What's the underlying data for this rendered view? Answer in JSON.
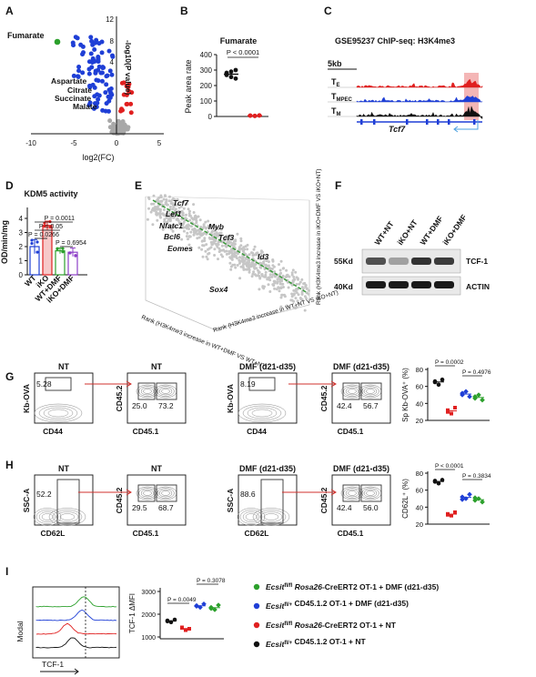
{
  "panels": {
    "A": {
      "letter": "A",
      "ylabel": "-log10(P value)",
      "xlabel": "log2(FC)",
      "highlight_label": "Fumarate",
      "metabolite_labels": [
        "Aspartate",
        "Citrate",
        "Succinate",
        "Malate"
      ],
      "colors": {
        "down": "#1f3fd6",
        "up": "#e02020",
        "ns": "#a8a8a8",
        "fumarate": "#2ca02c"
      },
      "chart_data": {
        "type": "scatter",
        "xlim": [
          -10,
          5
        ],
        "ylim": [
          0,
          12
        ],
        "xticks": [
          "-10",
          "-5",
          "0",
          "5"
        ],
        "yticks": [
          "12",
          "8",
          "4"
        ],
        "highlight": {
          "name": "Fumarate",
          "x": -6.9,
          "y": 8.3
        }
      }
    },
    "B": {
      "letter": "B",
      "title": "Fumarate",
      "ylabel": "Peak area rate",
      "pvalue": "P < 0.0001",
      "chart_data": {
        "type": "scatter",
        "ylim": [
          0,
          400
        ],
        "yticks": [
          "400",
          "300",
          "200",
          "100",
          "0"
        ],
        "groups": [
          {
            "color": "#111111",
            "values": [
              282,
              255,
              300,
              268,
              290,
              245
            ]
          },
          {
            "color": "#e02020",
            "values": [
              6,
              4,
              7,
              5,
              3,
              6
            ]
          }
        ]
      }
    },
    "C": {
      "letter": "C",
      "title": "GSE95237 ChIP-seq:  H3K4me3",
      "scale": "5kb",
      "tracks": [
        {
          "label": "T",
          "sub": "E",
          "color": "#e02020"
        },
        {
          "label": "T",
          "sub": "MPEC",
          "color": "#1f3fd6"
        },
        {
          "label": "T",
          "sub": "M",
          "color": "#111111"
        }
      ],
      "gene": "Tcf7"
    },
    "D": {
      "letter": "D",
      "title": "KDM5 activity",
      "ylabel": "OD/min/mg",
      "pvalues": [
        "P = 0.0011",
        "P = 0.05",
        "P = 0.0266",
        "P = 0.6954"
      ],
      "chart_data": {
        "type": "bar",
        "categories": [
          "WT",
          "iKO",
          "WT+DMF",
          "iKO+DMF"
        ],
        "values": [
          2.0,
          3.5,
          1.7,
          1.6
        ],
        "errors": [
          0.5,
          0.3,
          0.2,
          0.3
        ],
        "colors": [
          "#1f3fd6",
          "#e02020",
          "#2ca02c",
          "#8e3fc8"
        ],
        "ylim": [
          0,
          4
        ],
        "yticks": [
          "4",
          "3",
          "2",
          "1",
          "0"
        ]
      }
    },
    "E": {
      "letter": "E",
      "gene_labels": [
        "Tcf7",
        "Lef1",
        "Nfatc1",
        "Bcl6",
        "Eomes",
        "Myb",
        "Tcf3",
        "Id3",
        "Sox4"
      ],
      "axis_x": "Rank (H3K4me3 increase in WT+DMF VS WT+NT)",
      "axis_y": "Rank (H3K4me3 increase in WT+NT VS iKO+NT)",
      "axis_z": "Rank (H3K4me3 increase in iKO+DMF VS iKO+NT)"
    },
    "F": {
      "letter": "F",
      "lanes": [
        "WT+NT",
        "iKO+NT",
        "WT+DMF",
        "iKO+DMF"
      ],
      "markers": [
        "55Kd",
        "40Kd"
      ],
      "bands": [
        "TCF-1",
        "ACTIN"
      ],
      "tcf1_intensity": [
        0.75,
        0.35,
        0.9,
        0.85
      ]
    },
    "G": {
      "letter": "G",
      "plots": [
        {
          "title": "NT",
          "ylabel": "Kb-OVA",
          "xlabel": "CD44",
          "values": [
            "5.28"
          ]
        },
        {
          "title": "NT",
          "ylabel": "CD45.2",
          "xlabel": "CD45.1",
          "values": [
            "25.0",
            "73.2"
          ]
        },
        {
          "title": "DMF (d21-d35)",
          "ylabel": "Kb-OVA",
          "xlabel": "CD44",
          "values": [
            "8.19"
          ]
        },
        {
          "title": "DMF (d21-d35)",
          "ylabel": "CD45.2",
          "xlabel": "CD45.1",
          "values": [
            "42.4",
            "56.7"
          ]
        }
      ],
      "summary": {
        "ylabel": "Sp Kb-OVA⁺ (%)",
        "pvalues": [
          "P = 0.0002",
          "P = 0.4976"
        ],
        "yticks": [
          "80",
          "60",
          "40",
          "20"
        ],
        "chart_data": {
          "type": "scatter",
          "ylim": [
            20,
            80
          ],
          "groups": [
            {
              "color": "#111111",
              "shape": "circle",
              "values": [
                65,
                62,
                68,
                66
              ]
            },
            {
              "color": "#e02020",
              "shape": "square",
              "values": [
                32,
                28,
                35,
                30
              ]
            },
            {
              "color": "#1f3fd6",
              "shape": "diamond",
              "values": [
                50,
                54,
                48,
                52
              ]
            },
            {
              "color": "#2ca02c",
              "shape": "diamond",
              "values": [
                46,
                50,
                44,
                48
              ]
            }
          ]
        }
      }
    },
    "H": {
      "letter": "H",
      "plots": [
        {
          "title": "NT",
          "ylabel": "SSC-A",
          "xlabel": "CD62L",
          "values": [
            "52.2"
          ]
        },
        {
          "title": "NT",
          "ylabel": "CD45.2",
          "xlabel": "CD45.1",
          "values": [
            "29.5",
            "68.7"
          ]
        },
        {
          "title": "DMF (d21-d35)",
          "ylabel": "SSC-A",
          "xlabel": "CD62L",
          "values": [
            "88.6"
          ]
        },
        {
          "title": "DMF (d21-d35)",
          "ylabel": "CD45.2",
          "xlabel": "CD45.1",
          "values": [
            "42.4",
            "56.0"
          ]
        }
      ],
      "summary": {
        "ylabel": "CD62L⁺ (%)",
        "pvalues": [
          "P < 0.0001",
          "P = 0.3834"
        ],
        "yticks": [
          "80",
          "60",
          "40",
          "20"
        ],
        "chart_data": {
          "type": "scatter",
          "ylim": [
            20,
            80
          ],
          "groups": [
            {
              "color": "#111111",
              "shape": "circle",
              "values": [
                70,
                68,
                72,
                71
              ]
            },
            {
              "color": "#e02020",
              "shape": "square",
              "values": [
                32,
                30,
                34,
                31
              ]
            },
            {
              "color": "#1f3fd6",
              "shape": "diamond",
              "values": [
                52,
                50,
                55,
                49
              ]
            },
            {
              "color": "#2ca02c",
              "shape": "diamond",
              "values": [
                48,
                50,
                46,
                51
              ]
            }
          ]
        }
      }
    },
    "I": {
      "letter": "I",
      "ylabel_hist": "Modal",
      "xlabel_hist": "TCF-1",
      "ylabel_scatter": "TCF-1 ΔMFI",
      "pvalues": [
        "P = 0.0049",
        "P = 0.3078"
      ],
      "yticks": [
        "3000",
        "2000",
        "1000"
      ],
      "chart_data": {
        "type": "scatter",
        "ylim": [
          1000,
          3000
        ],
        "groups": [
          {
            "color": "#111111",
            "shape": "circle",
            "values": [
              1720,
              1650,
              1760,
              1690
            ]
          },
          {
            "color": "#e02020",
            "shape": "square",
            "values": [
              1400,
              1300,
              1360,
              1420
            ]
          },
          {
            "color": "#1f3fd6",
            "shape": "diamond",
            "values": [
              2380,
              2300,
              2450,
              2350
            ]
          },
          {
            "color": "#2ca02c",
            "shape": "diamond",
            "values": [
              2300,
              2200,
              2400,
              2250
            ]
          }
        ]
      },
      "legend": [
        {
          "color": "#2ca02c",
          "gene": "Ecsit",
          "sup": "fl/fl",
          "rest": " Rosa26",
          "tail": "-CreERT2 OT-1 + DMF (d21-d35)"
        },
        {
          "color": "#1f3fd6",
          "gene": "Ecsit",
          "sup": "fl/+",
          "rest": "",
          "tail": " CD45.1.2 OT-1 + DMF (d21-d35)"
        },
        {
          "color": "#e02020",
          "gene": "Ecsit",
          "sup": "fl/fl",
          "rest": " Rosa26",
          "tail": "-CreERT2 OT-1 + NT"
        },
        {
          "color": "#111111",
          "gene": "Ecsit",
          "sup": "fl/+",
          "rest": "",
          "tail": " CD45.1.2 OT-1 + NT"
        }
      ]
    }
  }
}
